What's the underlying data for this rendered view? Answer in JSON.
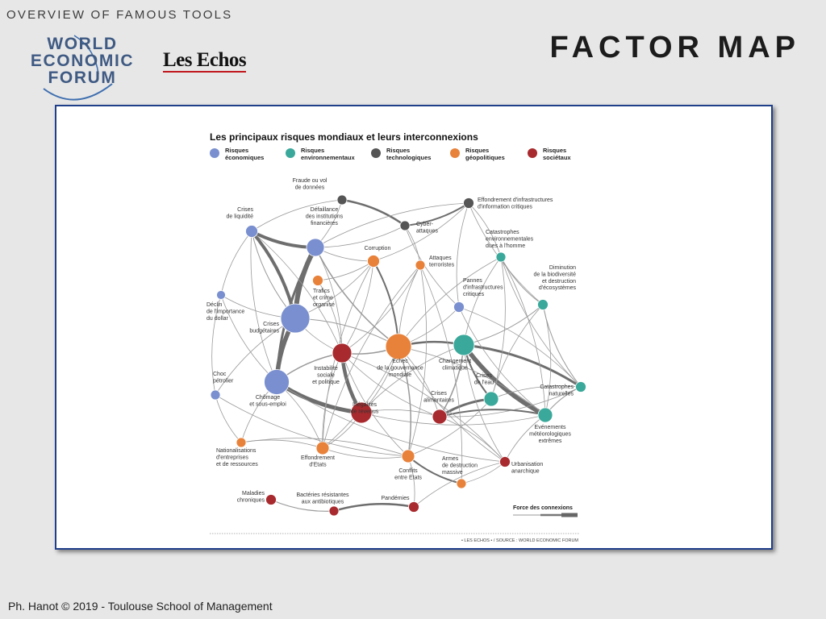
{
  "header": {
    "kicker": "OVERVIEW OF FAMOUS TOOLS",
    "title": "FACTOR MAP",
    "wef_logo": "WORLD ECONOMIC FORUM",
    "wef_lines": [
      "WORLD",
      "ECONOMIC",
      "FORUM"
    ],
    "lesechos_logo": "Les Echos"
  },
  "diagram": {
    "title": "Les principaux risques mondiaux et leurs interconnexions",
    "legend": [
      {
        "line1": "Risques",
        "line2": "économiques",
        "color": "#7a8fcf"
      },
      {
        "line1": "Risques",
        "line2": "environnementaux",
        "color": "#3aa89a"
      },
      {
        "line1": "Risques",
        "line2": "technologiques",
        "color": "#555555"
      },
      {
        "line1": "Risques",
        "line2": "géopolitiques",
        "color": "#e8823a"
      },
      {
        "line1": "Risques",
        "line2": "sociétaux",
        "color": "#a82a2e"
      }
    ],
    "nodes": [
      {
        "id": "fraude",
        "type": "tech",
        "label": [
          "Fraude ou vol",
          "de données"
        ]
      },
      {
        "id": "effinfo",
        "type": "tech",
        "label": [
          "Effondrement d'infrastructures",
          "d'information critiques"
        ]
      },
      {
        "id": "cyber",
        "type": "tech",
        "label": [
          "Cyber-",
          "attaques"
        ]
      },
      {
        "id": "liquid",
        "type": "econ",
        "label": [
          "Crises",
          "de liquidité"
        ]
      },
      {
        "id": "defail",
        "type": "econ",
        "label": [
          "Défaillance",
          "des institutions",
          "financières"
        ]
      },
      {
        "id": "corrup",
        "type": "geo",
        "label": [
          "Corruption"
        ]
      },
      {
        "id": "attaq",
        "type": "geo",
        "label": [
          "Attaques",
          "terroristes"
        ]
      },
      {
        "id": "catenv",
        "type": "env",
        "label": [
          "Catastrophes",
          "environnementales",
          "dues à l'homme"
        ]
      },
      {
        "id": "trafic",
        "type": "geo",
        "label": [
          "Trafics",
          "et crime",
          "organisé"
        ]
      },
      {
        "id": "declin",
        "type": "econ",
        "label": [
          "Déclin",
          "de l'importance",
          "du dollar"
        ]
      },
      {
        "id": "dimin",
        "type": "env",
        "label": [
          "Diminution",
          "de la biodiversité",
          "et destruction",
          "d'écosystèmes"
        ]
      },
      {
        "id": "pannes",
        "type": "econ",
        "label": [
          "Pannes",
          "d'infrastructures",
          "critiques"
        ]
      },
      {
        "id": "budget",
        "type": "econ",
        "label": [
          "Crises",
          "budgétaires"
        ]
      },
      {
        "id": "instab",
        "type": "soc",
        "label": [
          "Instabilité",
          "sociale",
          "et politique"
        ]
      },
      {
        "id": "echec",
        "type": "geo",
        "label": [
          "Echec",
          "de la gouvernance",
          "mondiale"
        ]
      },
      {
        "id": "chgclim",
        "type": "env",
        "label": [
          "Changement",
          "climatique"
        ]
      },
      {
        "id": "choc",
        "type": "econ",
        "label": [
          "Choc",
          "pétrolier"
        ]
      },
      {
        "id": "chomage",
        "type": "econ",
        "label": [
          "Chômage",
          "et sous-emploi"
        ]
      },
      {
        "id": "eau",
        "type": "env",
        "label": [
          "Crises",
          "de l'eau"
        ]
      },
      {
        "id": "alim",
        "type": "soc",
        "label": [
          "Crises",
          "alimentaires"
        ]
      },
      {
        "id": "catnat",
        "type": "env",
        "label": [
          "Catastrophes",
          "naturelles"
        ]
      },
      {
        "id": "inegal",
        "type": "soc",
        "label": [
          "Inégalités",
          "de revenus"
        ]
      },
      {
        "id": "evmet",
        "type": "env",
        "label": [
          "Evénements",
          "météorologiques",
          "extrêmes"
        ]
      },
      {
        "id": "nation",
        "type": "geo",
        "label": [
          "Nationalisations",
          "d'entreprises",
          "et de ressources"
        ]
      },
      {
        "id": "effetats",
        "type": "geo",
        "label": [
          "Effondrement",
          "d'Etats"
        ]
      },
      {
        "id": "conflits",
        "type": "geo",
        "label": [
          "Conflits",
          "entre Etats"
        ]
      },
      {
        "id": "armes",
        "type": "geo",
        "label": [
          "Armes",
          "de destruction",
          "massive"
        ]
      },
      {
        "id": "urban",
        "type": "soc",
        "label": [
          "Urbanisation",
          "anarchique"
        ]
      },
      {
        "id": "malad",
        "type": "soc",
        "label": [
          "Maladies",
          "chroniques"
        ]
      },
      {
        "id": "bacter",
        "type": "soc",
        "label": [
          "Bactéries résistantes",
          "aux antibiotiques"
        ]
      },
      {
        "id": "pandem",
        "type": "soc",
        "label": [
          "Pandémies"
        ]
      }
    ],
    "strength_label": "Force des connexions",
    "source": "• LES ECHOS • / SOURCE : WORLD ECONOMIC FORUM"
  },
  "footer": "Ph. Hanot © 2019  -  Toulouse School of Management"
}
